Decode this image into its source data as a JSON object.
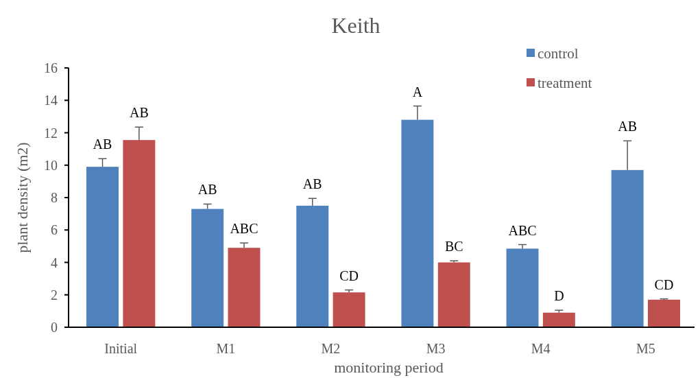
{
  "chart_data": {
    "type": "bar",
    "title": "Keith",
    "xlabel": "monitoring period",
    "ylabel": "plant density (m2)",
    "categories": [
      "Initial",
      "M1",
      "M2",
      "M3",
      "M4",
      "M5"
    ],
    "series": [
      {
        "name": "control",
        "color": "#4f81bd",
        "value_labels": [
          "AB",
          "AB",
          "AB",
          "A",
          "ABC",
          "AB"
        ],
        "values": [
          9.9,
          7.3,
          7.5,
          12.8,
          4.85,
          9.7
        ],
        "errors": [
          [
            9.9,
            10.4
          ],
          [
            7.3,
            7.6
          ],
          [
            7.5,
            7.95
          ],
          [
            12.8,
            13.65
          ],
          [
            4.85,
            5.1
          ],
          [
            9.7,
            11.5
          ]
        ]
      },
      {
        "name": "treatment",
        "color": "#c0504d",
        "value_labels": [
          "AB",
          "ABC",
          "CD",
          "BC",
          "D",
          "CD"
        ],
        "values": [
          11.55,
          4.9,
          2.15,
          4.0,
          0.9,
          1.7
        ],
        "errors": [
          [
            11.55,
            12.35
          ],
          [
            4.9,
            5.2
          ],
          [
            2.15,
            2.3
          ],
          [
            4.0,
            4.1
          ],
          [
            0.9,
            1.05
          ],
          [
            1.7,
            1.75
          ]
        ]
      }
    ],
    "ylim": [
      0,
      16
    ],
    "yticks": [
      0,
      2,
      4,
      6,
      8,
      10,
      12,
      14,
      16
    ],
    "grid": false,
    "legend": "top right"
  }
}
